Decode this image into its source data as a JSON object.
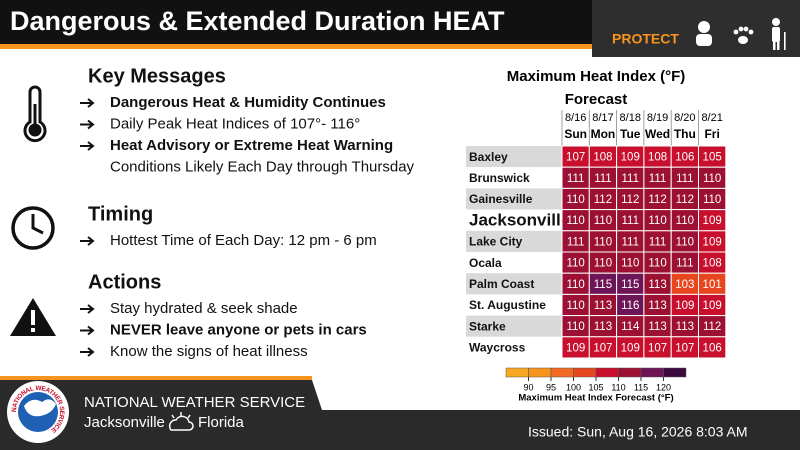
{
  "header": {
    "title": "Dangerous & Extended Duration HEAT",
    "protect": "PROTECT"
  },
  "sections": [
    {
      "heading": "Key Messages",
      "icon": "thermometer",
      "items": [
        {
          "text": "Dangerous Heat & Humidity Continues",
          "bold": true,
          "bullet": true
        },
        {
          "text": "Daily Peak Heat Indices of 107°- 116°",
          "bold": false,
          "bullet": true
        },
        {
          "text": "Heat Advisory or Extreme Heat Warning",
          "bold": true,
          "bullet": true
        },
        {
          "text": "Conditions Likely Each Day through Thursday",
          "bold": false,
          "bullet": false
        }
      ]
    },
    {
      "heading": "Timing",
      "icon": "clock",
      "items": [
        {
          "text": "Hottest Time of Each Day: 12 pm - 6 pm",
          "bold": false,
          "bullet": true
        }
      ]
    },
    {
      "heading": "Actions",
      "icon": "warning",
      "items": [
        {
          "text": "Stay hydrated & seek shade",
          "bold": false,
          "bullet": true
        },
        {
          "text": "NEVER leave anyone or pets in cars",
          "bold": true,
          "bullet": true
        },
        {
          "text": "Know the signs of heat illness",
          "bold": false,
          "bullet": true
        }
      ]
    }
  ],
  "table": {
    "title": "Maximum Heat Index (°F)",
    "subtitle": "Forecast",
    "dates": [
      "8/16",
      "8/17",
      "8/18",
      "8/19",
      "8/20",
      "8/21"
    ],
    "days": [
      "Sun",
      "Mon",
      "Tue",
      "Wed",
      "Thu",
      "Fri"
    ],
    "rows": [
      {
        "city": "Baxley",
        "large": false,
        "values": [
          107,
          108,
          109,
          108,
          106,
          105
        ]
      },
      {
        "city": "Brunswick",
        "large": false,
        "values": [
          111,
          111,
          111,
          111,
          111,
          110
        ]
      },
      {
        "city": "Gainesville",
        "large": false,
        "values": [
          110,
          112,
          112,
          112,
          112,
          110
        ]
      },
      {
        "city": "Jacksonville",
        "large": true,
        "values": [
          110,
          110,
          111,
          110,
          110,
          109
        ]
      },
      {
        "city": "Lake City",
        "large": false,
        "values": [
          111,
          110,
          111,
          111,
          110,
          109
        ]
      },
      {
        "city": "Ocala",
        "large": false,
        "values": [
          110,
          110,
          110,
          110,
          111,
          108
        ]
      },
      {
        "city": "Palm Coast",
        "large": false,
        "values": [
          110,
          115,
          115,
          113,
          103,
          101
        ]
      },
      {
        "city": "St. Augustine",
        "large": false,
        "values": [
          110,
          113,
          116,
          113,
          109,
          109
        ]
      },
      {
        "city": "Starke",
        "large": false,
        "values": [
          110,
          113,
          114,
          113,
          113,
          112
        ]
      },
      {
        "city": "Waycross",
        "large": false,
        "values": [
          109,
          107,
          109,
          107,
          107,
          106
        ]
      }
    ]
  },
  "legend": {
    "ticks": [
      90,
      95,
      100,
      105,
      110,
      115,
      120
    ],
    "colors": [
      "#f9a825",
      "#f7941d",
      "#f26a21",
      "#e8461e",
      "#c8102e",
      "#9c1033",
      "#6e1558",
      "#3d0a3d"
    ],
    "title": "Maximum Heat Index Forecast (°F)"
  },
  "footer": {
    "logo_text": "NATIONAL WEATHER SERVICE",
    "org": "NATIONAL WEATHER SERVICE",
    "city": "Jacksonville",
    "state": "Florida",
    "issued": "Issued: Sun, Aug 16, 2026 8:03 AM"
  }
}
